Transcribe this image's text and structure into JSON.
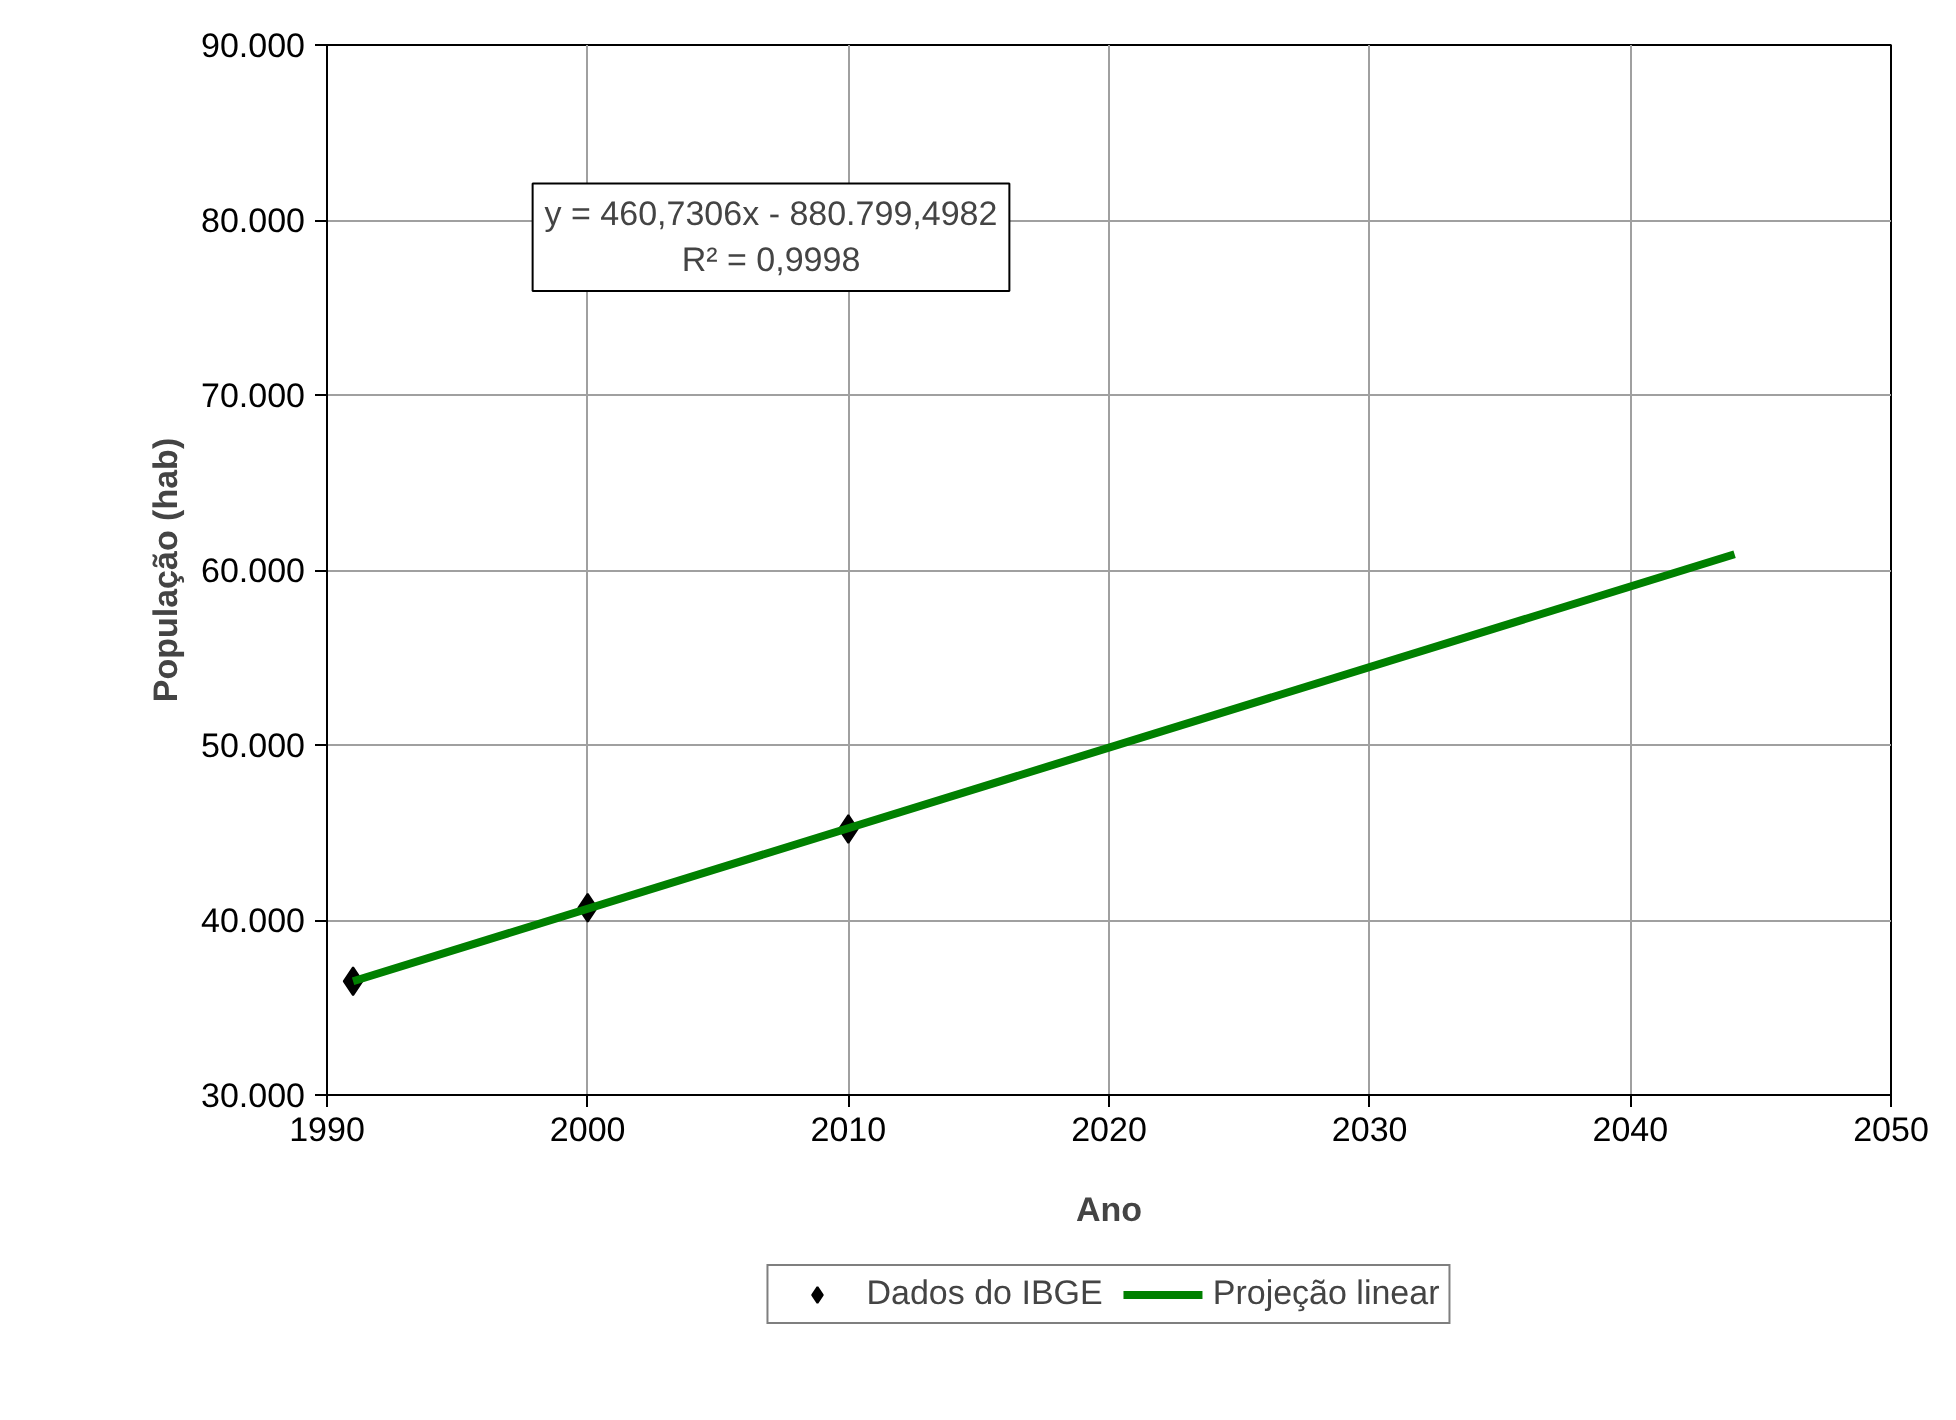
{
  "chart_data": {
    "type": "scatter",
    "xlabel": "Ano",
    "ylabel": "População (hab)",
    "annotations": [
      "y = 460,7306x - 880.799,4982",
      "R² = 0,9998"
    ],
    "series": [
      {
        "name": "Dados do IBGE",
        "color": "#000000",
        "marker": "diamond",
        "x": [
          1991,
          2000,
          2010
        ],
        "values": [
          36500,
          40700,
          45200
        ]
      },
      {
        "name": "Projeção linear",
        "type": "line",
        "color": "#008000",
        "marker": "none",
        "line_style": "solid",
        "x": [
          1991,
          2044
        ],
        "values": [
          36500,
          60900
        ]
      }
    ],
    "xlim": [
      1990,
      2050
    ],
    "xticks": [
      1990,
      2000,
      2010,
      2020,
      2030,
      2040,
      2050
    ],
    "ylim": [
      30000,
      90000
    ],
    "yticks": [
      {
        "value": 30000,
        "label": "30.000"
      },
      {
        "value": 40000,
        "label": "40.000"
      },
      {
        "value": 50000,
        "label": "50.000"
      },
      {
        "value": 60000,
        "label": "60.000"
      },
      {
        "value": 70000,
        "label": "70.000"
      },
      {
        "value": 80000,
        "label": "80.000"
      },
      {
        "value": 90000,
        "label": "90.000"
      }
    ],
    "grid": true,
    "legend": "bottom"
  }
}
